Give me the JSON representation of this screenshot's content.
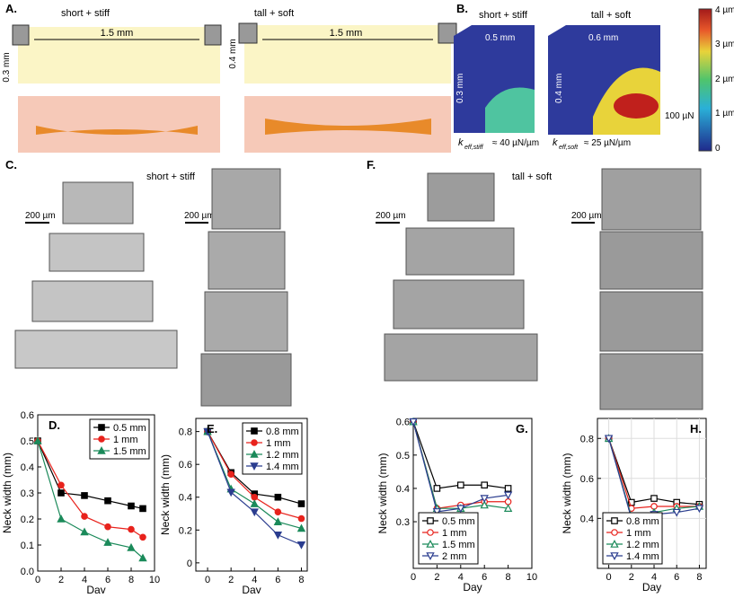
{
  "panels": {
    "a": {
      "label": "A.",
      "left_title": "short + stiff",
      "right_title": "tall + soft",
      "left_width": "1.5 mm",
      "right_width": "1.5 mm",
      "left_height": "0.3 mm",
      "right_height": "0.4 mm"
    },
    "b": {
      "label": "B.",
      "left_title": "short + stiff",
      "right_title": "tall + soft",
      "left_width": "0.5 mm",
      "right_width": "0.6 mm",
      "left_height": "0.3 mm",
      "right_height": "0.4 mm",
      "force": "100 µN",
      "k_symbol": "k",
      "left_sub": "eff,stiff",
      "left_value": "≈ 40 µN/µm",
      "right_sub": "eff,soft",
      "right_value": "≈ 25 µN/µm",
      "colorbar": [
        "4 µm",
        "3 µm",
        "2 µm",
        "1 µm",
        "0"
      ]
    },
    "c": {
      "label": "C.",
      "title": "short + stiff",
      "scale_left": "200 µm",
      "scale_right": "200 µm"
    },
    "f": {
      "label": "F.",
      "title": "tall + soft",
      "scale_left": "200 µm",
      "scale_right": "200 µm"
    }
  },
  "chart_data": [
    {
      "type": "line",
      "title": "D.",
      "x_label": "Day",
      "y_label": "Neck width (mm)",
      "xlim": [
        0,
        10
      ],
      "xticks": [
        0,
        2,
        4,
        6,
        8,
        10
      ],
      "ylim": [
        0,
        0.6
      ],
      "yticks": [
        {
          "value": 0,
          "label": "0.0"
        },
        0.1,
        0.2,
        0.3,
        0.4,
        0.5,
        0.6
      ],
      "grid": false,
      "legend": "top-right",
      "filled": true,
      "series": [
        {
          "name": "0.5 mm",
          "color": "#000000",
          "marker": "square",
          "x": [
            0,
            2,
            4,
            6,
            8,
            9
          ],
          "values": [
            0.5,
            0.3,
            0.29,
            0.27,
            0.25,
            0.24
          ]
        },
        {
          "name": "1 mm",
          "color": "#e8221c",
          "marker": "circle",
          "x": [
            0,
            2,
            4,
            6,
            8,
            9
          ],
          "values": [
            0.5,
            0.33,
            0.21,
            0.17,
            0.16,
            0.13
          ]
        },
        {
          "name": "1.5 mm",
          "color": "#1b8a5a",
          "marker": "triangle",
          "x": [
            0,
            2,
            4,
            6,
            8,
            9
          ],
          "values": [
            0.5,
            0.2,
            0.15,
            0.11,
            0.09,
            0.05
          ]
        }
      ]
    },
    {
      "type": "line",
      "title": "E.",
      "x_label": "Day",
      "y_label": "Neck width (mm)",
      "xlim": [
        -1,
        8.5
      ],
      "xticks": [
        0,
        2,
        4,
        6,
        8
      ],
      "ylim": [
        -0.05,
        0.88
      ],
      "yticks": [
        0,
        0.2,
        0.4,
        0.6,
        0.8
      ],
      "grid": false,
      "legend": "top-right",
      "filled": true,
      "series": [
        {
          "name": "0.8 mm",
          "color": "#000000",
          "marker": "square",
          "x": [
            0,
            2,
            4,
            6,
            8
          ],
          "values": [
            0.8,
            0.55,
            0.42,
            0.4,
            0.36
          ]
        },
        {
          "name": "1 mm",
          "color": "#e8221c",
          "marker": "circle",
          "x": [
            0,
            2,
            4,
            6,
            8
          ],
          "values": [
            0.8,
            0.54,
            0.4,
            0.31,
            0.27
          ]
        },
        {
          "name": "1.2 mm",
          "color": "#1b8a5a",
          "marker": "triangle",
          "x": [
            0,
            2,
            4,
            6,
            8
          ],
          "values": [
            0.8,
            0.45,
            0.36,
            0.25,
            0.21
          ]
        },
        {
          "name": "1.4 mm",
          "color": "#2b3d8f",
          "marker": "triangle-down",
          "x": [
            0,
            2,
            4,
            6,
            8
          ],
          "values": [
            0.8,
            0.43,
            0.31,
            0.17,
            0.11
          ]
        }
      ]
    },
    {
      "type": "line",
      "title": "G.",
      "x_label": "Day",
      "y_label": "Neck width (mm)",
      "xlim": [
        0,
        10
      ],
      "xticks": [
        0,
        2,
        4,
        6,
        8,
        10
      ],
      "ylim": [
        0.16,
        0.61
      ],
      "yticks": [
        0.3,
        0.4,
        0.5,
        0.6
      ],
      "grid": false,
      "legend": "bottom-left",
      "filled": false,
      "series": [
        {
          "name": "0.5 mm",
          "color": "#000000",
          "marker": "square",
          "x": [
            0,
            2,
            4,
            6,
            8
          ],
          "values": [
            0.6,
            0.4,
            0.41,
            0.41,
            0.4
          ]
        },
        {
          "name": "1 mm",
          "color": "#e8221c",
          "marker": "circle",
          "x": [
            0,
            2,
            4,
            6,
            8
          ],
          "values": [
            0.6,
            0.34,
            0.35,
            0.36,
            0.36
          ]
        },
        {
          "name": "1.5 mm",
          "color": "#1b8a5a",
          "marker": "triangle",
          "x": [
            0,
            2,
            4,
            6,
            8
          ],
          "values": [
            0.6,
            0.34,
            0.34,
            0.35,
            0.34
          ]
        },
        {
          "name": "2 mm",
          "color": "#2b3d8f",
          "marker": "triangle-down",
          "x": [
            0,
            2,
            4,
            6,
            8
          ],
          "values": [
            0.6,
            0.33,
            0.34,
            0.37,
            0.38
          ]
        }
      ]
    },
    {
      "type": "line",
      "title": "H.",
      "x_label": "Day",
      "y_label": "Neck width (mm)",
      "xlim": [
        -1,
        8.6
      ],
      "xticks": [
        0,
        2,
        4,
        6,
        8
      ],
      "ylim": [
        0.15,
        0.9
      ],
      "yticks": [
        0.4,
        0.6,
        0.8
      ],
      "grid": true,
      "legend": "bottom-left",
      "filled": false,
      "series": [
        {
          "name": "0.8 mm",
          "color": "#000000",
          "marker": "square",
          "x": [
            0,
            2,
            4,
            6,
            8
          ],
          "values": [
            0.8,
            0.48,
            0.5,
            0.48,
            0.47
          ]
        },
        {
          "name": "1 mm",
          "color": "#e8221c",
          "marker": "circle",
          "x": [
            0,
            2,
            4,
            6,
            8
          ],
          "values": [
            0.8,
            0.45,
            0.46,
            0.46,
            0.46
          ]
        },
        {
          "name": "1.2 mm",
          "color": "#1b8a5a",
          "marker": "triangle",
          "x": [
            0,
            2,
            4,
            6,
            8
          ],
          "values": [
            0.8,
            0.41,
            0.43,
            0.45,
            0.46
          ]
        },
        {
          "name": "1.4 mm",
          "color": "#2b3d8f",
          "marker": "triangle-down",
          "x": [
            0,
            2,
            4,
            6,
            8
          ],
          "values": [
            0.8,
            0.4,
            0.42,
            0.43,
            0.45
          ]
        }
      ]
    }
  ]
}
